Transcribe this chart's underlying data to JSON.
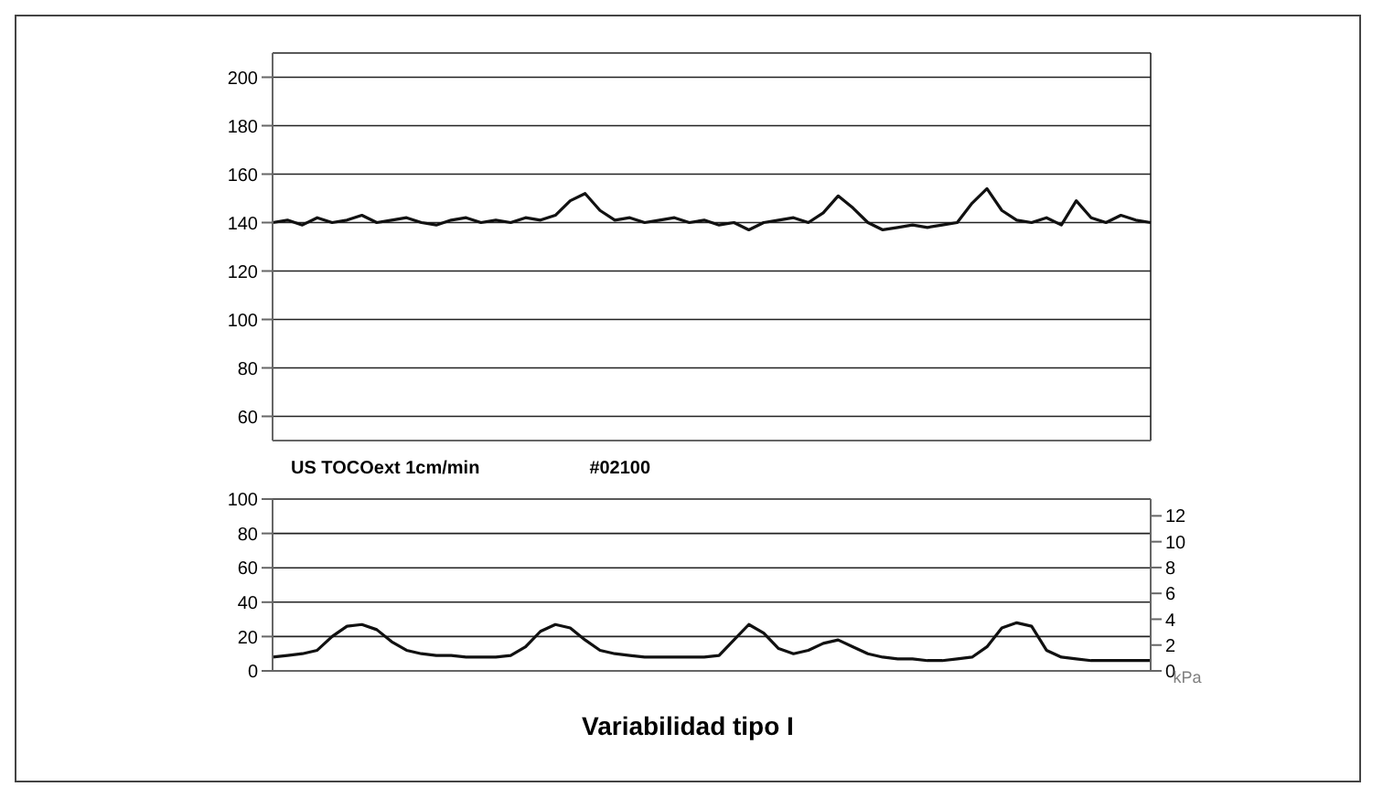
{
  "chart_data": [
    {
      "type": "line",
      "categories": [
        null,
        null,
        null,
        null,
        null,
        null,
        null,
        null,
        null,
        null,
        null,
        null,
        null,
        null,
        null,
        null,
        null,
        null,
        null,
        null,
        null,
        null,
        null,
        null,
        null,
        null,
        null,
        null,
        null,
        null,
        null,
        null,
        null,
        null,
        null,
        null,
        null,
        null,
        null,
        null,
        null,
        null,
        null,
        null,
        null,
        null,
        null,
        null,
        null,
        null,
        null,
        null,
        null,
        null,
        null,
        null,
        null,
        null,
        null,
        null
      ],
      "series": [
        {
          "color": "#111111",
          "values": [
            140,
            141,
            139,
            142,
            140,
            141,
            143,
            140,
            141,
            142,
            140,
            139,
            141,
            142,
            140,
            141,
            140,
            142,
            141,
            143,
            149,
            152,
            145,
            141,
            142,
            140,
            141,
            142,
            140,
            141,
            139,
            140,
            137,
            140,
            141,
            142,
            140,
            144,
            151,
            146,
            140,
            137,
            138,
            139,
            138,
            139,
            140,
            148,
            154,
            145,
            141,
            140,
            142,
            139,
            149,
            142,
            140,
            143,
            141,
            140
          ]
        }
      ],
      "ylim": [
        50,
        210
      ],
      "yticks": [
        60,
        80,
        100,
        120,
        140,
        160,
        180,
        200
      ],
      "grid": true,
      "tick_labels": "y",
      "marker": "none"
    },
    {
      "type": "line",
      "categories": [
        null,
        null,
        null,
        null,
        null,
        null,
        null,
        null,
        null,
        null,
        null,
        null,
        null,
        null,
        null,
        null,
        null,
        null,
        null,
        null,
        null,
        null,
        null,
        null,
        null,
        null,
        null,
        null,
        null,
        null,
        null,
        null,
        null,
        null,
        null,
        null,
        null,
        null,
        null,
        null,
        null,
        null,
        null,
        null,
        null,
        null,
        null,
        null,
        null,
        null,
        null,
        null,
        null,
        null,
        null,
        null,
        null,
        null,
        null,
        null
      ],
      "series": [
        {
          "color": "#111111",
          "values": [
            8,
            9,
            10,
            12,
            20,
            26,
            27,
            24,
            17,
            12,
            10,
            9,
            9,
            8,
            8,
            8,
            9,
            14,
            23,
            27,
            25,
            18,
            12,
            10,
            9,
            8,
            8,
            8,
            8,
            8,
            9,
            18,
            27,
            22,
            13,
            10,
            12,
            16,
            18,
            14,
            10,
            8,
            7,
            7,
            6,
            6,
            7,
            8,
            14,
            25,
            28,
            26,
            12,
            8,
            7,
            6,
            6,
            6,
            6,
            6
          ]
        }
      ],
      "ylim": [
        0,
        100
      ],
      "yticks": [
        0,
        20,
        40,
        60,
        80,
        100
      ],
      "y2lim": [
        0,
        13.3
      ],
      "y2ticks": [
        0,
        2,
        4,
        6,
        8,
        10,
        12
      ],
      "y2label": "kPa",
      "grid": true,
      "tick_labels": "y",
      "marker": "none",
      "annotations": [
        "US TOCOext 1cm/min",
        "#02100"
      ],
      "title": "Variabilidad tipo I"
    }
  ]
}
